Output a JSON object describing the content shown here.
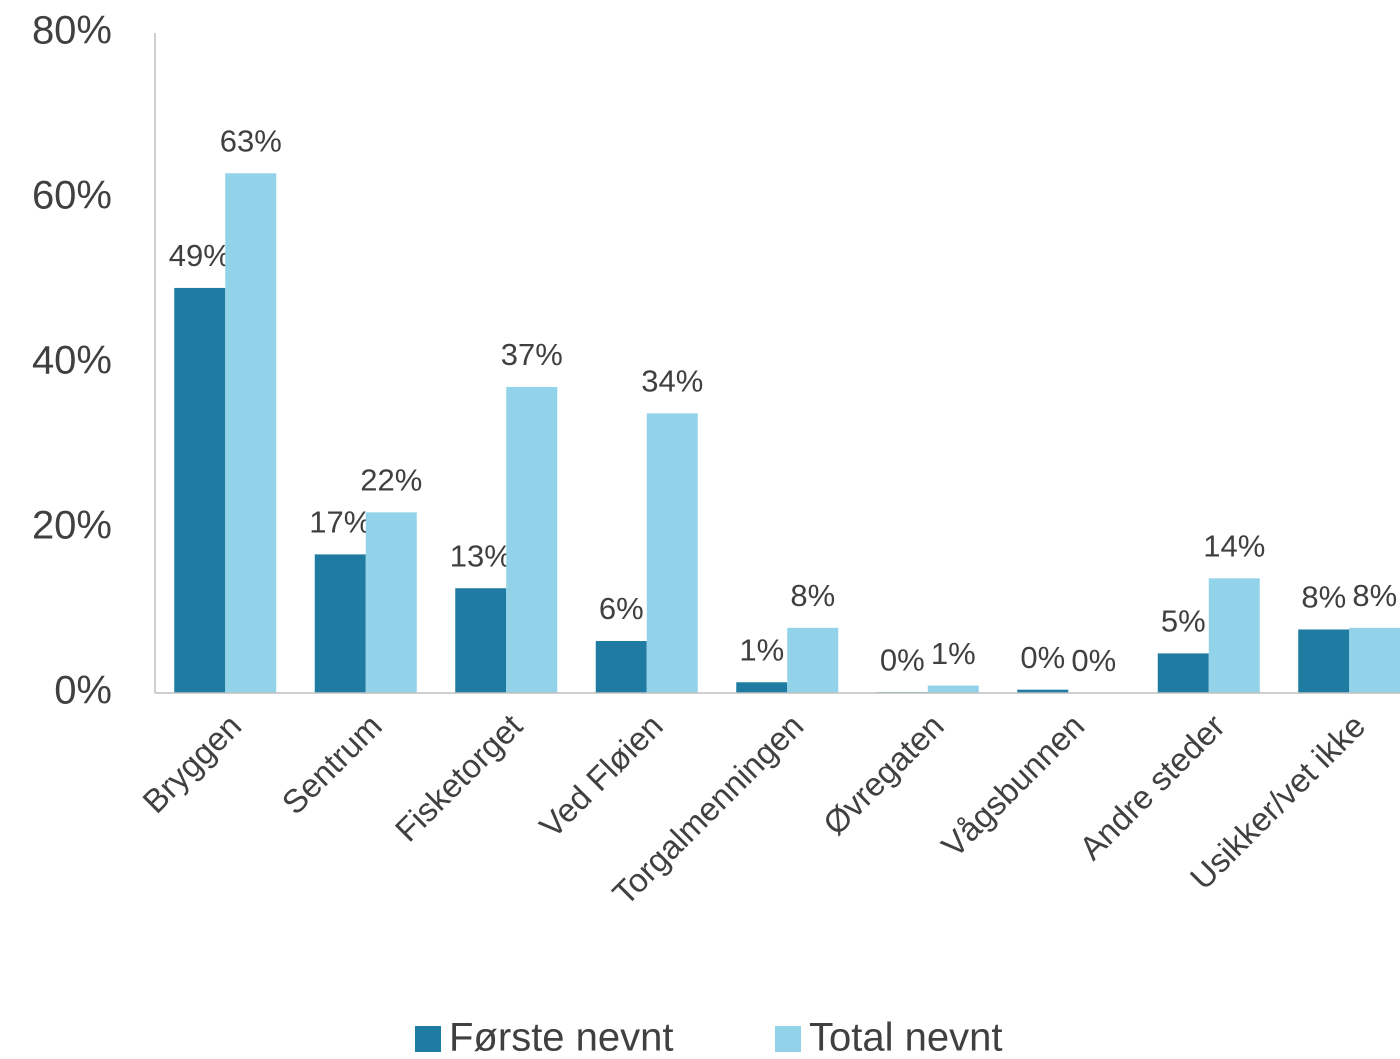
{
  "chart_data": {
    "type": "bar",
    "categories": [
      "Bryggen",
      "Sentrum",
      "Fisketorget",
      "Ved Fløien",
      "Torgalmenningen",
      "Øvregaten",
      "Vågsbunnen",
      "Andre steder",
      "Usikker/vet ikke"
    ],
    "series": [
      {
        "name": "Første nevnt",
        "color": "#1f7ba1",
        "values": [
          49.1,
          16.8,
          12.7,
          6.3,
          1.3,
          0.1,
          0.4,
          4.8,
          7.7
        ],
        "value_labels": [
          "49%",
          "17%",
          "13%",
          "6%",
          "1%",
          "0%",
          "0%",
          "5%",
          "8%"
        ]
      },
      {
        "name": "Total nevnt",
        "color": "#92d3ea",
        "values": [
          63,
          21.9,
          37.1,
          33.9,
          7.9,
          0.9,
          0,
          13.9,
          7.9
        ],
        "value_labels": [
          "63%",
          "22%",
          "37%",
          "34%",
          "8%",
          "1%",
          "0%",
          "14%",
          "8%"
        ]
      }
    ],
    "ylim": [
      0,
      80
    ],
    "yticks": [
      {
        "value": 0,
        "label": "0%"
      },
      {
        "value": 20,
        "label": "20%"
      },
      {
        "value": 40,
        "label": "40%"
      },
      {
        "value": 60,
        "label": "60%"
      },
      {
        "value": 80,
        "label": "80%"
      }
    ],
    "grid": false,
    "legend": "bottom"
  }
}
